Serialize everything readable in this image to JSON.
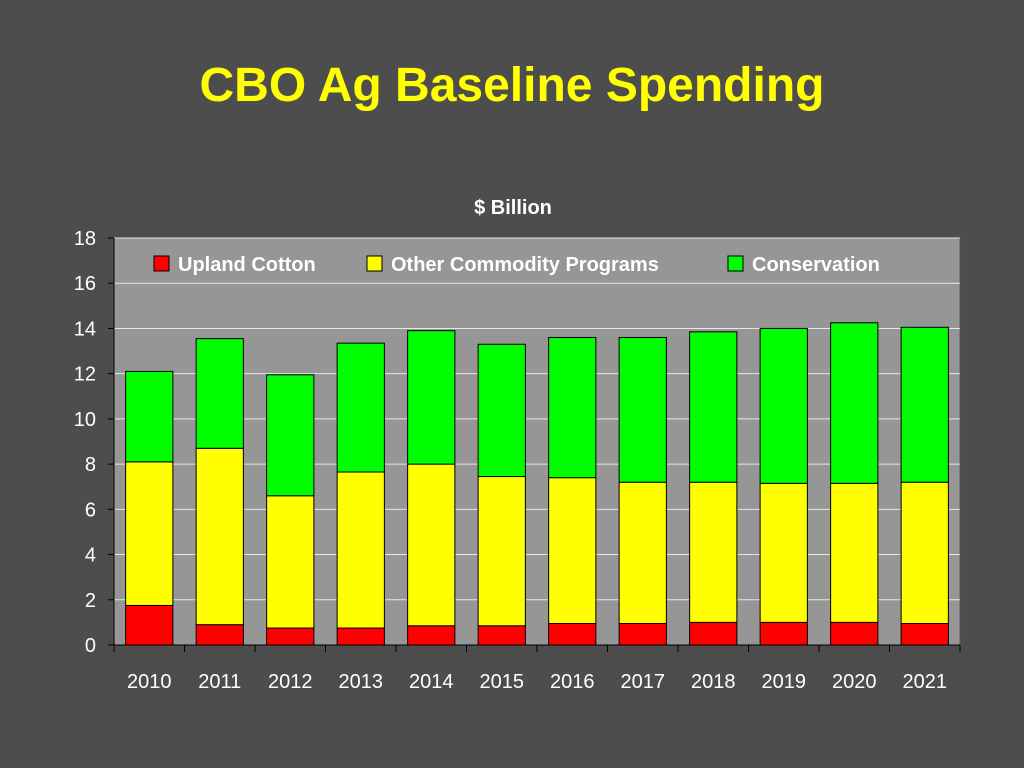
{
  "slide": {
    "title": "CBO Ag Baseline Spending"
  },
  "colors": {
    "background": "#4d4d4d",
    "title": "#ffff00",
    "plot_area": "#969696",
    "gridline": "#e6e6e6",
    "text": "#ffffff"
  },
  "chart_data": {
    "type": "bar",
    "stacked": true,
    "title": "$ Billion",
    "xlabel": "",
    "ylabel": "",
    "ylim": [
      0,
      18
    ],
    "yticks": [
      0,
      2,
      4,
      6,
      8,
      10,
      12,
      14,
      16,
      18
    ],
    "grid": true,
    "legend": "top",
    "categories": [
      "2010",
      "2011",
      "2012",
      "2013",
      "2014",
      "2015",
      "2016",
      "2017",
      "2018",
      "2019",
      "2020",
      "2021"
    ],
    "series": [
      {
        "name": "Upland Cotton",
        "color": "#ff0000",
        "values": [
          1.75,
          0.9,
          0.75,
          0.75,
          0.85,
          0.85,
          0.95,
          0.95,
          1.0,
          1.0,
          1.0,
          0.95
        ]
      },
      {
        "name": "Other Commodity Programs",
        "color": "#ffff00",
        "values": [
          6.35,
          7.8,
          5.85,
          6.9,
          7.15,
          6.6,
          6.45,
          6.25,
          6.2,
          6.15,
          6.15,
          6.25
        ]
      },
      {
        "name": "Conservation",
        "color": "#00ff00",
        "values": [
          4.0,
          4.85,
          5.35,
          5.7,
          5.9,
          5.85,
          6.2,
          6.4,
          6.65,
          6.85,
          7.1,
          6.85
        ]
      }
    ]
  }
}
